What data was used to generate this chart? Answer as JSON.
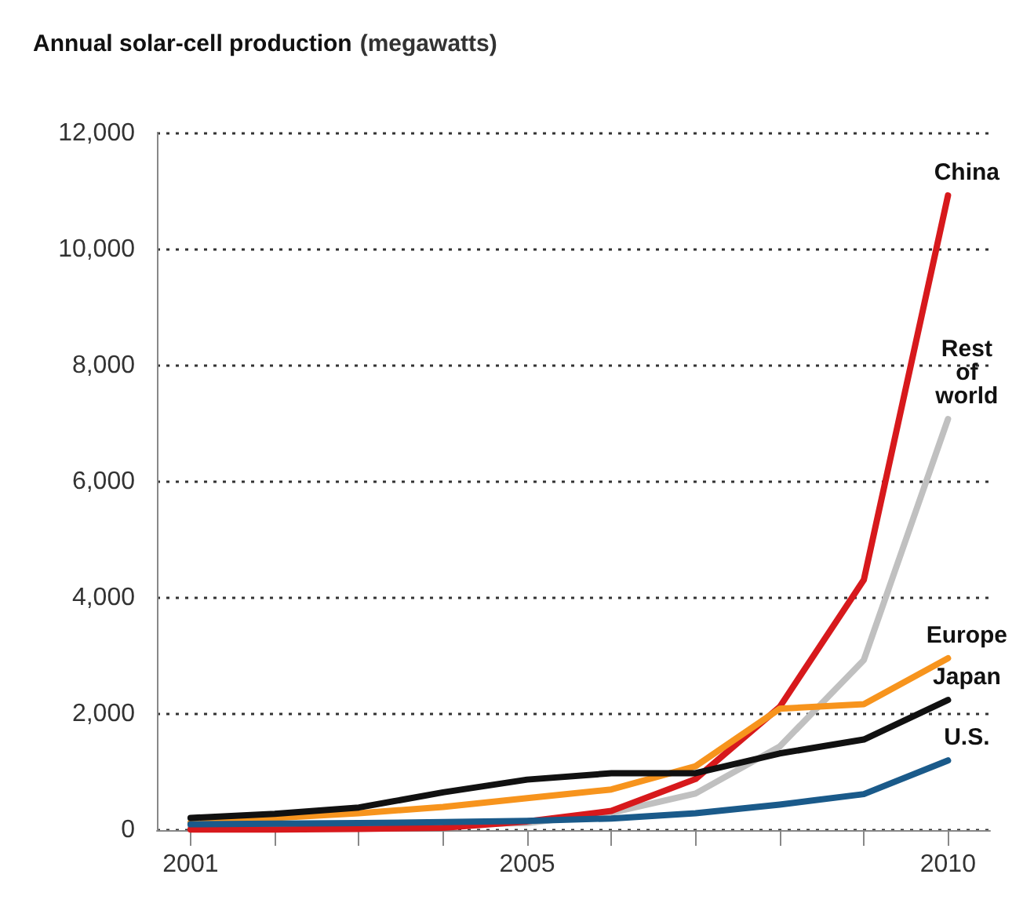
{
  "chart_data": {
    "type": "line",
    "title": "Annual solar-cell production",
    "ylabel": "(megawatts)",
    "x": [
      2001,
      2002,
      2003,
      2004,
      2005,
      2006,
      2007,
      2008,
      2009,
      2010
    ],
    "xlim": [
      2000.6,
      2010.5
    ],
    "xticks": [
      {
        "value": 2001,
        "label": "2001"
      },
      {
        "value": 2002,
        "label": null
      },
      {
        "value": 2003,
        "label": null
      },
      {
        "value": 2004,
        "label": null
      },
      {
        "value": 2005,
        "label": "2005"
      },
      {
        "value": 2006,
        "label": null
      },
      {
        "value": 2007,
        "label": null
      },
      {
        "value": 2008,
        "label": null
      },
      {
        "value": 2009,
        "label": null
      },
      {
        "value": 2010,
        "label": "2010"
      }
    ],
    "ylim": [
      0,
      12000
    ],
    "yticks": [
      0,
      {
        "value": 2000,
        "label": "2,000"
      },
      {
        "value": 4000,
        "label": "4,000"
      },
      {
        "value": 6000,
        "label": "6,000"
      },
      {
        "value": 8000,
        "label": "8,000"
      },
      {
        "value": 10000,
        "label": "10,000"
      },
      {
        "value": 12000,
        "label": "12,000"
      }
    ],
    "grid": "y",
    "legend": false,
    "marker": "none",
    "line_style": "solid",
    "series": [
      {
        "name": "Rest of world",
        "color": "#c0c0c0",
        "values": [
          60,
          null,
          null,
          100,
          120,
          300,
          630,
          1440,
          2930,
          7080
        ]
      },
      {
        "name": "China",
        "color": "#d7191c",
        "values": [
          10,
          10,
          20,
          40,
          150,
          330,
          880,
          2120,
          4310,
          10930
        ]
      },
      {
        "name": "Europe",
        "color": "#f7941d",
        "values": [
          130,
          210,
          290,
          400,
          550,
          700,
          1100,
          2090,
          2170,
          2960
        ]
      },
      {
        "name": "U.S.",
        "color": "#1a5a8a",
        "values": [
          100,
          110,
          120,
          140,
          160,
          200,
          290,
          440,
          620,
          1200
        ]
      },
      {
        "name": "Japan",
        "color": "#111111",
        "values": [
          210,
          280,
          390,
          650,
          870,
          980,
          980,
          1320,
          1560,
          2240
        ]
      }
    ]
  }
}
